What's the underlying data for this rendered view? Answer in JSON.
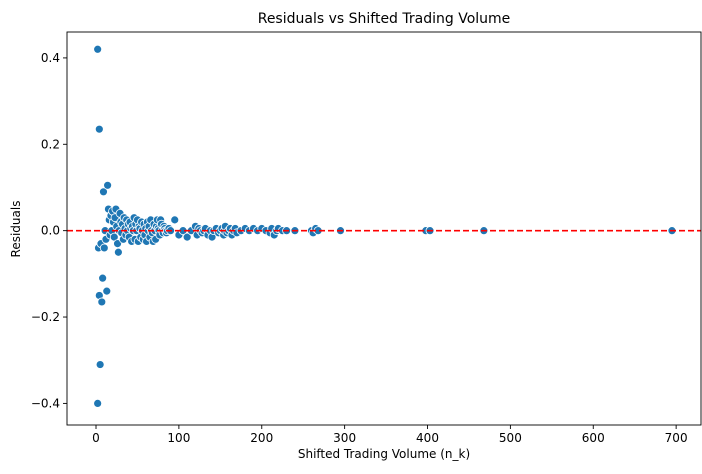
{
  "chart_data": {
    "type": "scatter",
    "title": "Residuals vs Shifted Trading Volume",
    "xlabel": "Shifted Trading Volume (n_k)",
    "ylabel": "Residuals",
    "xlim": [
      -35,
      730
    ],
    "ylim": [
      -0.45,
      0.46
    ],
    "xticks": [
      0,
      100,
      200,
      300,
      400,
      500,
      600,
      700
    ],
    "xtick_labels": [
      "0",
      "100",
      "200",
      "300",
      "400",
      "500",
      "600",
      "700"
    ],
    "yticks": [
      -0.4,
      -0.2,
      0.0,
      0.2,
      0.4
    ],
    "ytick_labels": [
      "−0.4",
      "−0.2",
      "0.0",
      "0.2",
      "0.4"
    ],
    "grid": false,
    "marker_color": "#1f77b4",
    "reference_line": {
      "y": 0.0,
      "color": "#ff0000",
      "style": "dashed"
    },
    "series": [
      {
        "x": [
          2,
          2,
          3,
          4,
          4,
          5,
          6,
          7,
          8,
          9,
          10,
          11,
          12,
          13,
          14,
          15,
          16,
          17,
          18,
          19,
          20,
          21,
          22,
          23,
          24,
          25,
          26,
          27,
          28,
          29,
          30,
          31,
          32,
          33,
          34,
          35,
          36,
          37,
          38,
          39,
          40,
          41,
          42,
          43,
          44,
          45,
          46,
          47,
          48,
          49,
          50,
          51,
          52,
          53,
          54,
          55,
          56,
          57,
          58,
          59,
          60,
          61,
          62,
          63,
          64,
          65,
          66,
          67,
          68,
          69,
          70,
          71,
          72,
          73,
          74,
          75,
          76,
          77,
          78,
          79,
          80,
          81,
          82,
          83,
          84,
          85,
          86,
          88,
          90,
          95,
          100,
          105,
          110,
          115,
          120,
          122,
          124,
          126,
          128,
          130,
          132,
          135,
          138,
          140,
          142,
          145,
          148,
          150,
          152,
          154,
          155,
          156,
          158,
          160,
          162,
          164,
          166,
          168,
          170,
          175,
          180,
          185,
          190,
          195,
          200,
          205,
          210,
          212,
          215,
          218,
          220,
          225,
          230,
          240,
          260,
          262,
          265,
          268,
          295,
          398,
          403,
          468,
          695
        ],
        "y": [
          0.42,
          -0.4,
          -0.04,
          -0.15,
          0.235,
          -0.31,
          -0.03,
          -0.165,
          -0.11,
          0.09,
          -0.04,
          0.0,
          -0.02,
          -0.14,
          0.105,
          0.05,
          0.025,
          -0.01,
          0.035,
          0.0,
          0.045,
          0.02,
          -0.015,
          0.03,
          0.05,
          0.01,
          -0.03,
          -0.05,
          0.0,
          0.04,
          0.02,
          -0.005,
          0.015,
          -0.02,
          0.03,
          0.005,
          -0.01,
          0.025,
          0.0,
          0.015,
          -0.015,
          0.02,
          0.005,
          -0.025,
          0.01,
          0.0,
          0.03,
          -0.02,
          0.015,
          0.0,
          0.025,
          -0.025,
          0.01,
          0.005,
          -0.015,
          0.02,
          0.0,
          -0.02,
          0.015,
          -0.01,
          0.005,
          -0.025,
          0.02,
          0.0,
          0.01,
          -0.015,
          0.025,
          0.0,
          -0.005,
          -0.025,
          0.015,
          0.0,
          -0.02,
          0.01,
          0.025,
          0.005,
          0.0,
          -0.01,
          0.025,
          0.015,
          0.0,
          -0.005,
          0.01,
          0.005,
          0.0,
          -0.005,
          0.0,
          0.005,
          0.0,
          0.025,
          -0.01,
          0.0,
          -0.015,
          0.0,
          0.01,
          -0.01,
          0.005,
          0.0,
          -0.005,
          0.0,
          0.005,
          -0.01,
          0.0,
          -0.015,
          0.0,
          0.005,
          -0.005,
          0.0,
          0.005,
          -0.01,
          0.0,
          0.01,
          -0.005,
          0.0,
          0.005,
          -0.01,
          0.0,
          0.005,
          -0.005,
          0.0,
          0.005,
          0.0,
          0.005,
          0.0,
          0.005,
          0.0,
          -0.005,
          0.005,
          -0.01,
          0.0,
          0.005,
          0.0,
          0.0,
          0.0,
          0.0,
          -0.005,
          0.005,
          0.0,
          0.0,
          0.0,
          0.0,
          0.0,
          0.0
        ]
      }
    ]
  }
}
